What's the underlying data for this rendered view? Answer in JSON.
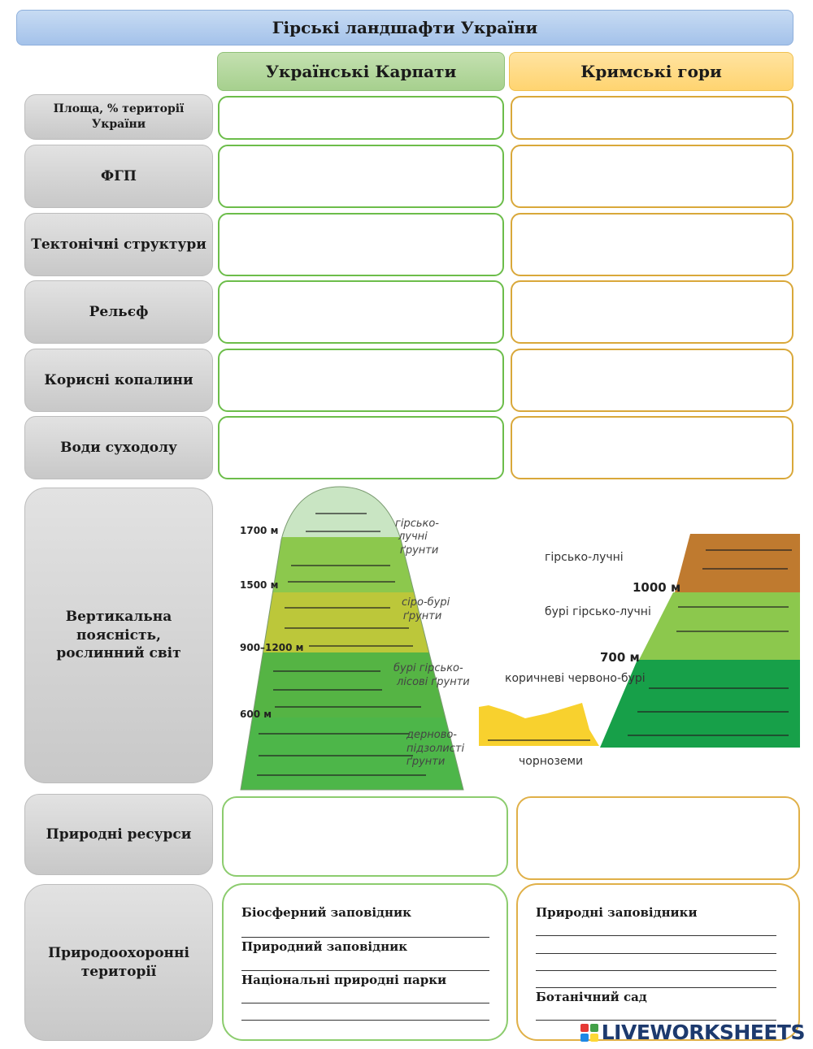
{
  "title": "Гірські ландшафти України",
  "columns": {
    "carpathians": "Українські Карпати",
    "crimea": "Кримські гори"
  },
  "rows": {
    "area": "Площа, % території України",
    "fgp": "ФГП",
    "tectonic": "Тектонічні структури",
    "relief": "Рельєф",
    "minerals": "Корисні копалини",
    "waters": "Води суходолу",
    "zonation": "Вертикальна поясність, рослинний світ",
    "resources": "Природні ресурси",
    "protected": "Природоохоронні території"
  },
  "carpathians_diagram": {
    "heights": [
      "1700 м",
      "1500 м",
      "900–1200 м",
      "600 м"
    ],
    "soils": [
      "гірсько-",
      "лучні",
      "ґрунти",
      "сіро-бурі",
      "ґрунти",
      "бурі гірсько-",
      "лісові ґрунти",
      "дерново-",
      "підзолисті",
      "ґрунти"
    ],
    "colors": [
      "#c9e5c3",
      "#8cc84d",
      "#bcc73a",
      "#55b444",
      "#4db649"
    ]
  },
  "crimea_diagram": {
    "soils": [
      "гірсько-лучні",
      "бурі гірсько-лучні",
      "коричневі червоно-бурі",
      "чорноземи"
    ],
    "heights": [
      "1000 м",
      "700 м"
    ],
    "colors": [
      "#bf7a2f",
      "#8cc84d",
      "#17a049",
      "#f8d12e"
    ]
  },
  "protected": {
    "carpathians": [
      "Біосферний заповідник",
      "Природний заповідник",
      "Національні природні парки"
    ],
    "crimea": [
      "Природні заповідники",
      "Ботанічний сад"
    ]
  },
  "brand": "LIVEWORKSHEETS"
}
